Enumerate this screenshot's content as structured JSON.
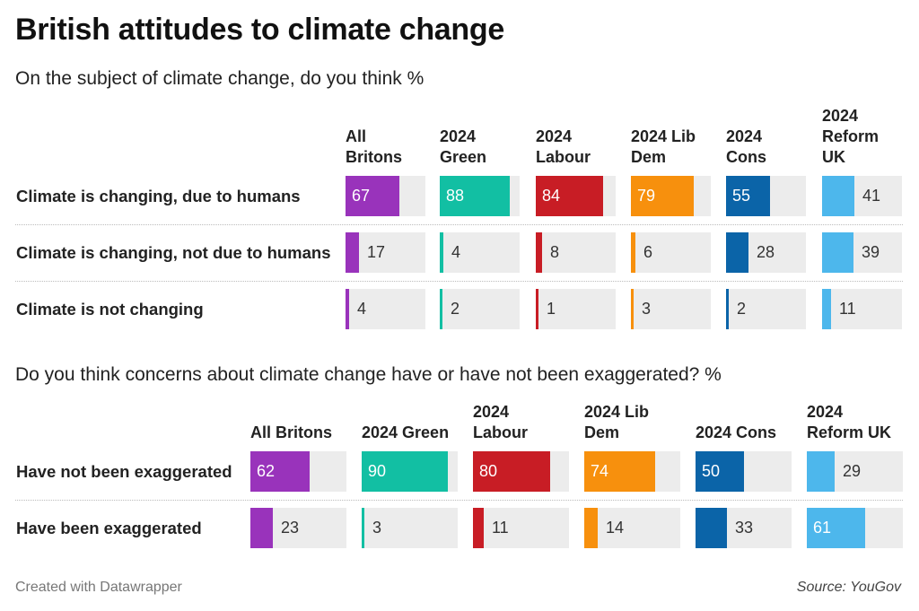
{
  "title": "British attitudes to climate change",
  "footer": {
    "credit": "Created with Datawrapper",
    "source": "Source: YouGov"
  },
  "colors": {
    "All Britons": "#9933bb",
    "2024 Green": "#12bfa3",
    "2024 Labour": "#c81d25",
    "2024 Lib Dem": "#f7900d",
    "2024 Cons": "#0b64a8",
    "2024 Reform UK": "#4db7ec",
    "track": "#ececec"
  },
  "chart_data": [
    {
      "type": "table",
      "subtitle": "On the subject of climate change, do you think %",
      "columns": [
        "All Britons",
        "2024 Green",
        "2024 Labour",
        "2024 Lib Dem",
        "2024 Cons",
        "2024 Reform UK"
      ],
      "rows": [
        {
          "label": "Climate is changing, due to humans",
          "values": [
            67,
            88,
            84,
            79,
            55,
            41
          ]
        },
        {
          "label": "Climate is changing, not due to humans",
          "values": [
            17,
            4,
            8,
            6,
            28,
            39
          ]
        },
        {
          "label": "Climate is not changing",
          "values": [
            4,
            2,
            1,
            3,
            2,
            11
          ]
        }
      ],
      "value_range": [
        0,
        100
      ]
    },
    {
      "type": "table",
      "subtitle": "Do you think concerns about climate change have or have not been exaggerated? %",
      "columns": [
        "All Britons",
        "2024 Green",
        "2024 Labour",
        "2024 Lib Dem",
        "2024 Cons",
        "2024 Reform UK"
      ],
      "rows": [
        {
          "label": "Have not been exaggerated",
          "values": [
            62,
            90,
            80,
            74,
            50,
            29
          ]
        },
        {
          "label": "Have been exaggerated",
          "values": [
            23,
            3,
            11,
            14,
            33,
            61
          ]
        }
      ],
      "value_range": [
        0,
        100
      ]
    }
  ]
}
